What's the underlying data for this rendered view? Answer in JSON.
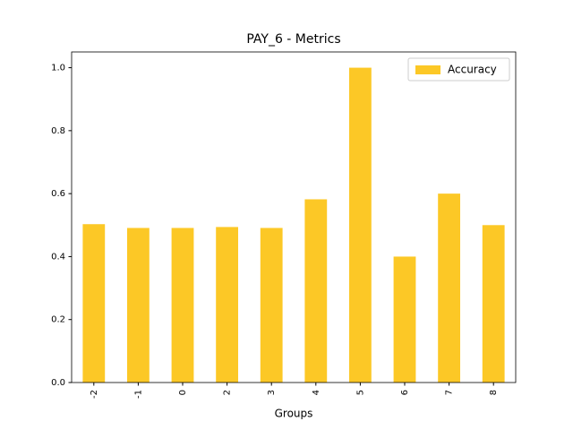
{
  "chart_data": {
    "type": "bar",
    "title": "PAY_6 - Metrics",
    "x_label": "Groups",
    "categories": [
      "-2",
      "-1",
      "0",
      "2",
      "3",
      "4",
      "5",
      "6",
      "7",
      "8"
    ],
    "series": [
      {
        "name": "Accuracy",
        "color": "#fcc826",
        "values": [
          0.503,
          0.491,
          0.491,
          0.494,
          0.491,
          0.582,
          1.0,
          0.4,
          0.6,
          0.5
        ]
      }
    ],
    "ylim": [
      0,
      1.05
    ],
    "yticks": [
      {
        "value": 0,
        "label": "0.0"
      },
      {
        "value": 0.2,
        "label": "0.2"
      },
      {
        "value": 0.4,
        "label": "0.4"
      },
      {
        "value": 0.6,
        "label": "0.6"
      },
      {
        "value": 0.8,
        "label": "0.8"
      },
      {
        "value": 1.0,
        "label": "1.0"
      }
    ],
    "grid": false,
    "legend": "upper-right"
  }
}
